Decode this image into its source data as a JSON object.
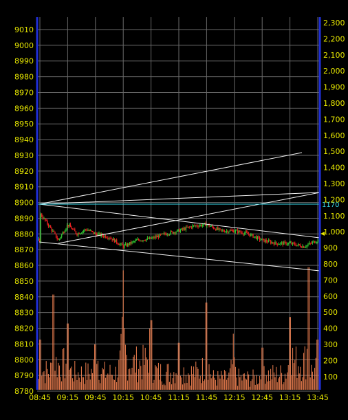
{
  "chart_data": {
    "type": "candlestick+bar",
    "title": "",
    "price_axis": {
      "side": "left",
      "ticks": [
        "9010",
        "9000",
        "8990",
        "8980",
        "8970",
        "8960",
        "8950",
        "8940",
        "8930",
        "8920",
        "8910",
        "8900",
        "8890",
        "8880",
        "8870",
        "8860",
        "8850",
        "8840",
        "8830",
        "8820",
        "8810",
        "8800",
        "8790",
        "8780"
      ],
      "range": [
        8780,
        9015
      ]
    },
    "volume_axis": {
      "side": "right",
      "ticks": [
        "2,300",
        "2,200",
        "2,100",
        "2,000",
        "1,900",
        "1,800",
        "1,700",
        "1,600",
        "1,500",
        "1,400",
        "1,300",
        "1,200",
        "1,100",
        "1,000",
        "900",
        "800",
        "700",
        "600",
        "500",
        "400",
        "300",
        "200",
        "100"
      ],
      "range": [
        0,
        2300
      ]
    },
    "time_axis": {
      "ticks": [
        "08:45",
        "09:15",
        "09:45",
        "10:15",
        "10:45",
        "11:15",
        "11:45",
        "12:15",
        "12:45",
        "13:15",
        "13:45"
      ]
    },
    "price_series_approx": [
      [
        "08:45",
        8893
      ],
      [
        "08:55",
        8885
      ],
      [
        "09:05",
        8876
      ],
      [
        "09:15",
        8886
      ],
      [
        "09:25",
        8880
      ],
      [
        "09:35",
        8883
      ],
      [
        "09:45",
        8880
      ],
      [
        "10:00",
        8878
      ],
      [
        "10:15",
        8872
      ],
      [
        "10:30",
        8876
      ],
      [
        "10:45",
        8877
      ],
      [
        "11:00",
        8880
      ],
      [
        "11:15",
        8882
      ],
      [
        "11:30",
        8885
      ],
      [
        "11:45",
        8886
      ],
      [
        "12:00",
        8882
      ],
      [
        "12:15",
        8882
      ],
      [
        "12:30",
        8880
      ],
      [
        "12:45",
        8876
      ],
      [
        "13:00",
        8874
      ],
      [
        "13:15",
        8874
      ],
      [
        "13:30",
        8872
      ],
      [
        "13:45",
        8876
      ]
    ],
    "volume_peaks_approx": [
      [
        "08:45",
        330
      ],
      [
        "09:00",
        610
      ],
      [
        "09:15",
        430
      ],
      [
        "09:45",
        300
      ],
      [
        "10:15",
        760
      ],
      [
        "10:45",
        450
      ],
      [
        "11:15",
        310
      ],
      [
        "11:45",
        560
      ],
      [
        "12:15",
        220
      ],
      [
        "12:45",
        280
      ],
      [
        "13:15",
        470
      ],
      [
        "13:35",
        780
      ],
      [
        "13:45",
        330
      ]
    ],
    "reference_line": {
      "value": "1170",
      "color": "#33d6e8"
    },
    "colors": {
      "up_candle": "#2fc42f",
      "down_candle": "#e82020",
      "volume": "#f08050",
      "axis": "#1f2fd8",
      "labels": "#e8e800",
      "grid": "#6a6a6a"
    },
    "grid": true
  }
}
